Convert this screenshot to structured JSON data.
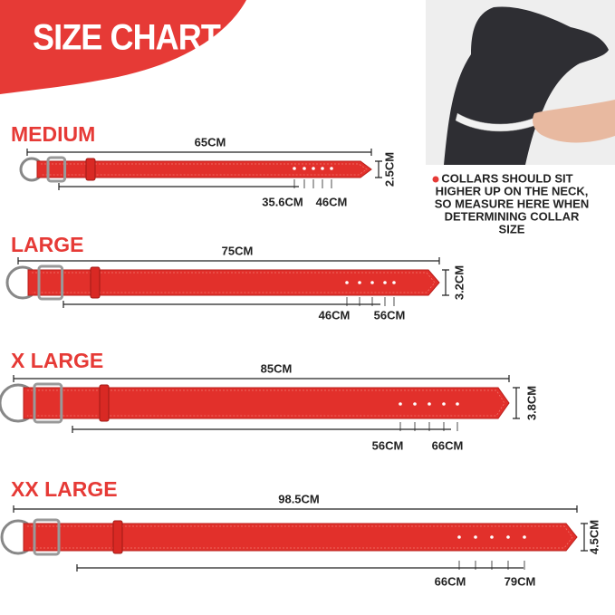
{
  "header": {
    "title": "SIZE CHART"
  },
  "sizes": [
    {
      "name": "MEDIUM",
      "length": "65CM",
      "width": "2.5CM",
      "min": "35.6CM",
      "max": "46CM"
    },
    {
      "name": "LARGE",
      "length": "75CM",
      "width": "3.2CM",
      "min": "46CM",
      "max": "56CM"
    },
    {
      "name": "X LARGE",
      "length": "85CM",
      "width": "3.8CM",
      "min": "56CM",
      "max": "66CM"
    },
    {
      "name": "XX LARGE",
      "length": "98.5CM",
      "width": "4.5CM",
      "min": "66CM",
      "max": "79CM"
    }
  ],
  "note": {
    "lines": [
      "COLLARS SHOULD SIT",
      "HIGHER UP ON THE NECK,",
      "SO MEASURE HERE WHEN",
      "DETERMINING COLLAR",
      "SIZE"
    ]
  }
}
